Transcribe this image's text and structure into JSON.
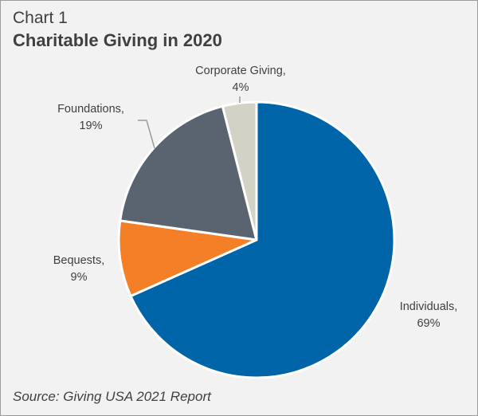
{
  "header": {
    "chart_number": "Chart 1",
    "title": "Charitable Giving in 2020"
  },
  "footer": {
    "source": "Source: Giving USA 2021 Report"
  },
  "colors": {
    "Individuals": "#0064a8",
    "Bequests": "#f47f26",
    "Foundations": "#5a6470",
    "Corporate Giving": "#d3d2c6"
  },
  "chart_data": {
    "type": "pie",
    "title": "Charitable Giving in 2020",
    "categories": [
      "Individuals",
      "Bequests",
      "Foundations",
      "Corporate Giving"
    ],
    "values": [
      69,
      9,
      19,
      4
    ],
    "labels": [
      [
        "Individuals,",
        "69%"
      ],
      [
        "Bequests,",
        "9%"
      ],
      [
        "Foundations,",
        "19%"
      ],
      [
        "Corporate Giving,",
        "4%"
      ]
    ],
    "legend": "none"
  }
}
